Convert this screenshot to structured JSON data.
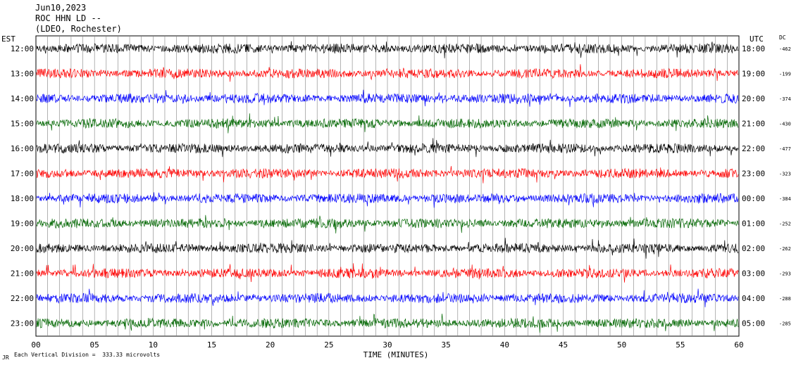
{
  "header": {
    "date": "Jun10,2023",
    "station": "ROC HHN LD --",
    "network": "(LDEO, Rochester)"
  },
  "left_axis_label": "EST",
  "right_axis_label": "UTC",
  "dc_label": "DC",
  "footnote": "Each Vertical Division =  333.33 microvolts",
  "footnote_mark": "JR",
  "colors": {
    "black": "#000000",
    "red": "#ff0000",
    "blue": "#0000ff",
    "green": "#006600"
  },
  "chart_data": {
    "type": "line",
    "title": "ROC HHN LD --",
    "xlabel": "TIME (MINUTES)",
    "ylabel": "",
    "xlim": [
      0,
      60
    ],
    "x_ticks": [
      "00",
      "05",
      "10",
      "15",
      "20",
      "25",
      "30",
      "35",
      "40",
      "45",
      "50",
      "55",
      "60"
    ],
    "grid": true,
    "series": [
      {
        "est": "12:00",
        "utc": "18:00",
        "dc": "-462",
        "color": "#000000"
      },
      {
        "est": "13:00",
        "utc": "19:00",
        "dc": "-199",
        "color": "#ff0000"
      },
      {
        "est": "14:00",
        "utc": "20:00",
        "dc": "-374",
        "color": "#0000ff"
      },
      {
        "est": "15:00",
        "utc": "21:00",
        "dc": "-430",
        "color": "#006600"
      },
      {
        "est": "16:00",
        "utc": "22:00",
        "dc": "-477",
        "color": "#000000"
      },
      {
        "est": "17:00",
        "utc": "23:00",
        "dc": "-323",
        "color": "#ff0000"
      },
      {
        "est": "18:00",
        "utc": "00:00",
        "dc": "-384",
        "color": "#0000ff"
      },
      {
        "est": "19:00",
        "utc": "01:00",
        "dc": "-252",
        "color": "#006600"
      },
      {
        "est": "20:00",
        "utc": "02:00",
        "dc": "-262",
        "color": "#000000"
      },
      {
        "est": "21:00",
        "utc": "03:00",
        "dc": "-293",
        "color": "#ff0000"
      },
      {
        "est": "22:00",
        "utc": "04:00",
        "dc": "-288",
        "color": "#0000ff"
      },
      {
        "est": "23:00",
        "utc": "05:00",
        "dc": "-285",
        "color": "#006600"
      }
    ]
  }
}
